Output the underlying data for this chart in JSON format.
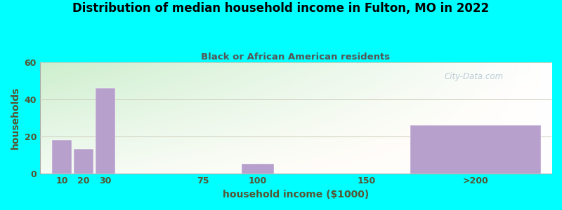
{
  "title": "Distribution of median household income in Fulton, MO in 2022",
  "subtitle": "Black or African American residents",
  "xlabel": "household income ($1000)",
  "ylabel": "households",
  "background_outer": "#00ffff",
  "bar_color": "#b8a0cc",
  "title_color": "#000000",
  "subtitle_color": "#555555",
  "axis_label_color": "#555533",
  "tick_label_color": "#555533",
  "categories": [
    "10",
    "20",
    "30",
    "75",
    "100",
    "150",
    ">200"
  ],
  "x_positions": [
    10,
    20,
    30,
    75,
    100,
    150,
    200
  ],
  "values": [
    18,
    13,
    46,
    0,
    5,
    0,
    26
  ],
  "bar_widths": [
    9,
    9,
    9,
    9,
    15,
    9,
    60
  ],
  "xlim": [
    0,
    235
  ],
  "ylim": [
    0,
    60
  ],
  "yticks": [
    0,
    20,
    40,
    60
  ],
  "xtick_positions": [
    10,
    20,
    30,
    75,
    100,
    150,
    200
  ],
  "xtick_labels": [
    "10",
    "20",
    "30",
    "75",
    "100",
    "150",
    ">200"
  ],
  "watermark": "City-Data.com",
  "figsize": [
    8.0,
    3.0
  ],
  "dpi": 100
}
